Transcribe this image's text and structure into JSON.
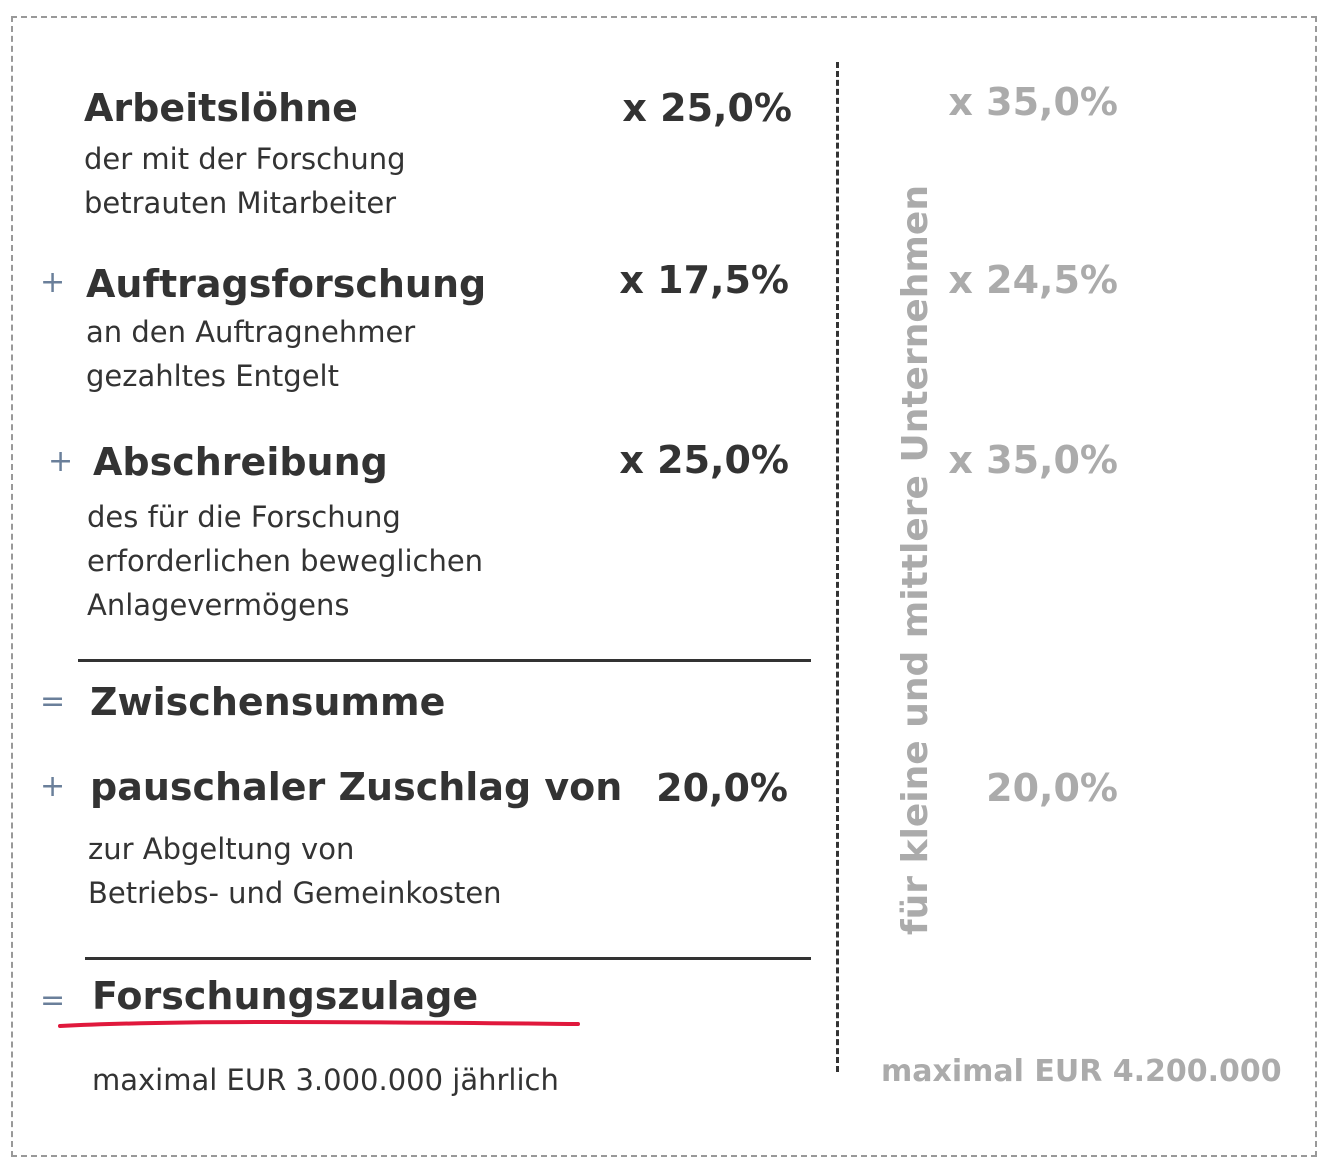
{
  "items": [
    {
      "operator": "",
      "title": "Arbeitslöhne",
      "sub1": "der mit der Forschung",
      "sub2": "betrauten Mitarbeiter",
      "sub3": "",
      "rate": "x 25,0%",
      "sme_rate": "x 35,0%"
    },
    {
      "operator": "+",
      "title": "Auftragsforschung",
      "sub1": "an den Auftragnehmer",
      "sub2": "gezahltes Entgelt",
      "sub3": "",
      "rate": "x 17,5%",
      "sme_rate": "x 24,5%"
    },
    {
      "operator": "+",
      "title": "Abschreibung",
      "sub1": "des für die Forschung",
      "sub2": "erforderlichen beweglichen",
      "sub3": "Anlagevermögens",
      "rate": "x 25,0%",
      "sme_rate": "x 35,0%"
    }
  ],
  "subtotal": {
    "operator": "=",
    "title": "Zwischensumme"
  },
  "surcharge": {
    "operator": "+",
    "title": "pauschaler Zuschlag von",
    "sub1": "zur Abgeltung von",
    "sub2": "Betriebs- und Gemeinkosten",
    "rate": "20,0%",
    "sme_rate": "20,0%"
  },
  "result": {
    "operator": "=",
    "title": "Forschungszulage",
    "max": "maximal EUR 3.000.000 jährlich",
    "sme_max": "maximal EUR 4.200.000"
  },
  "sme_label": "für kleine und mittlere Unternehmen",
  "colors": {
    "text": "#333333",
    "sme": "#ababab",
    "operator": "#6a7f9a",
    "underline": "#e0183c"
  }
}
